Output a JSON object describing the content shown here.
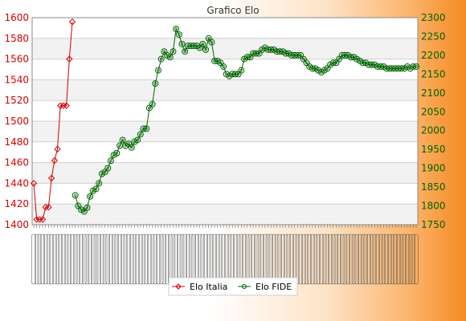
{
  "chart_data": {
    "type": "line",
    "title": "Grafico Elo",
    "legend_position": "bottom-center",
    "grid": true,
    "axes": {
      "left": {
        "ylim": [
          1400,
          1600
        ],
        "ticks": [
          1400,
          1420,
          1440,
          1460,
          1480,
          1500,
          1520,
          1540,
          1560,
          1580,
          1600
        ],
        "color": "#d40000"
      },
      "right": {
        "ylim": [
          1750,
          2300
        ],
        "ticks": [
          1750,
          1800,
          1850,
          1900,
          1950,
          2000,
          2050,
          2100,
          2150,
          2200,
          2250,
          2300
        ],
        "color": "#006400"
      }
    },
    "x_tick_count": 130,
    "series": [
      {
        "name": "Elo Italia",
        "axis": "left",
        "color": "#d40000",
        "marker": "diamond",
        "x_index": [
          0,
          1,
          2,
          3,
          4,
          5,
          6,
          7,
          8,
          9,
          10,
          11,
          12,
          13
        ],
        "values": [
          1440,
          1405,
          1405,
          1405,
          1417,
          1417,
          1445,
          1462,
          1473,
          1515,
          1515,
          1515,
          1560,
          1596
        ]
      },
      {
        "name": "Elo FIDE",
        "axis": "right",
        "color": "#006400",
        "marker": "circle",
        "x_index": [
          14,
          15,
          16,
          17,
          18,
          19,
          20,
          21,
          22,
          23,
          24,
          25,
          26,
          27,
          28,
          29,
          30,
          31,
          32,
          33,
          34,
          35,
          36,
          37,
          38,
          39,
          40,
          41,
          42,
          43,
          44,
          45,
          46,
          47,
          48,
          49,
          50,
          51,
          52,
          53,
          54,
          55,
          56,
          57,
          58,
          59,
          60,
          61,
          62,
          63,
          64,
          65,
          66,
          67,
          68,
          69,
          70,
          71,
          72,
          73,
          74,
          75,
          76,
          77,
          78,
          79,
          80,
          81,
          82,
          83,
          84,
          85,
          86,
          87,
          88,
          89,
          90,
          91,
          92,
          93,
          94,
          95,
          96,
          97,
          98,
          99,
          100,
          101,
          102,
          103,
          104,
          105,
          106,
          107,
          108,
          109,
          110,
          111,
          112,
          113,
          114,
          115,
          116,
          117,
          118,
          119,
          120,
          121,
          122,
          123,
          124,
          125,
          126,
          127,
          128,
          129
        ],
        "values": [
          1828,
          1800,
          1790,
          1785,
          1795,
          1825,
          1840,
          1845,
          1860,
          1885,
          1890,
          1900,
          1920,
          1935,
          1940,
          1960,
          1975,
          1960,
          1965,
          1955,
          1970,
          1975,
          1990,
          2005,
          2005,
          2060,
          2070,
          2125,
          2160,
          2190,
          2210,
          2200,
          2195,
          2210,
          2270,
          2255,
          2230,
          2210,
          2225,
          2225,
          2225,
          2225,
          2220,
          2230,
          2215,
          2245,
          2235,
          2185,
          2185,
          2180,
          2170,
          2150,
          2145,
          2150,
          2150,
          2150,
          2160,
          2190,
          2195,
          2195,
          2205,
          2205,
          2205,
          2215,
          2220,
          2215,
          2215,
          2215,
          2210,
          2210,
          2210,
          2205,
          2205,
          2200,
          2200,
          2200,
          2200,
          2190,
          2180,
          2170,
          2165,
          2165,
          2160,
          2155,
          2160,
          2165,
          2175,
          2180,
          2180,
          2190,
          2200,
          2200,
          2200,
          2195,
          2195,
          2190,
          2185,
          2180,
          2180,
          2175,
          2175,
          2175,
          2170,
          2170,
          2170,
          2165,
          2165,
          2165,
          2165,
          2165,
          2165,
          2165,
          2170,
          2165,
          2170,
          2170
        ]
      }
    ]
  }
}
